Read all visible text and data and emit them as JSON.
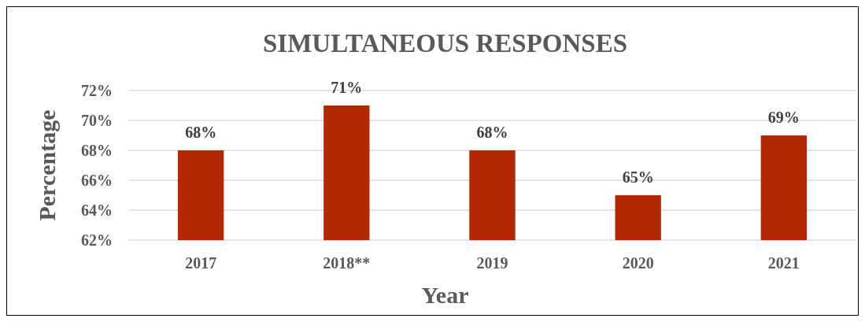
{
  "chart_data": {
    "type": "bar",
    "title": "SIMULTANEOUS RESPONSES",
    "xlabel": "Year",
    "ylabel": "Percentage",
    "categories": [
      "2017",
      "2018**",
      "2019",
      "2020",
      "2021"
    ],
    "values": [
      68,
      71,
      68,
      65,
      69
    ],
    "value_labels": [
      "68%",
      "71%",
      "68%",
      "65%",
      "69%"
    ],
    "color": "#b22800",
    "ylim": [
      62,
      72
    ],
    "yticks": [
      {
        "value": 62,
        "label": "62%"
      },
      {
        "value": 64,
        "label": "64%"
      },
      {
        "value": 66,
        "label": "66%"
      },
      {
        "value": 68,
        "label": "68%"
      },
      {
        "value": 70,
        "label": "70%"
      },
      {
        "value": 72,
        "label": "72%"
      }
    ],
    "grid": "y"
  }
}
